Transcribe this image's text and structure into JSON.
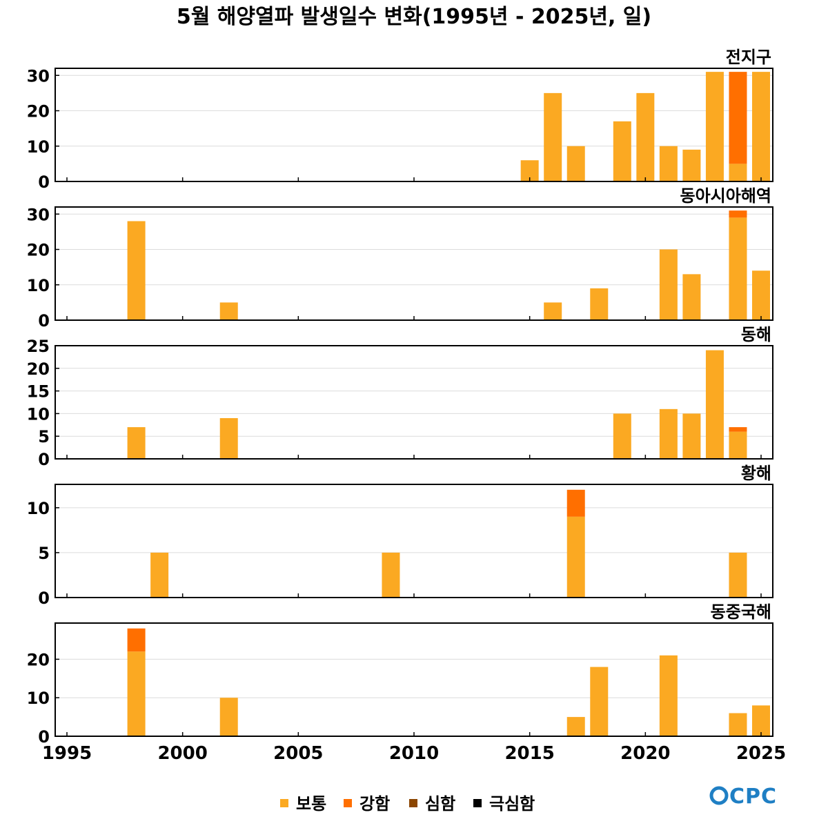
{
  "chart_data": {
    "type": "bar",
    "stacked": true,
    "title": "5월 해양열파 발생일수 변화(1995년 - 2025년, 일)",
    "xlim": [
      1995,
      2025
    ],
    "xticks": [
      1995,
      2000,
      2005,
      2010,
      2015,
      2020,
      2025
    ],
    "legend_position": "bottom-center",
    "grid": "horizontal",
    "legend": [
      {
        "name": "보통",
        "color": "#FBA922"
      },
      {
        "name": "강함",
        "color": "#FF6F00"
      },
      {
        "name": "심함",
        "color": "#8B4500"
      },
      {
        "name": "극심함",
        "color": "#000000"
      }
    ],
    "panels": [
      {
        "title": "전지구",
        "ylim": [
          0,
          32
        ],
        "yticks": [
          0,
          10,
          20,
          30
        ],
        "bars": [
          {
            "year": 2015,
            "values": [
              6,
              0,
              0,
              0
            ]
          },
          {
            "year": 2016,
            "values": [
              25,
              0,
              0,
              0
            ]
          },
          {
            "year": 2017,
            "values": [
              10,
              0,
              0,
              0
            ]
          },
          {
            "year": 2019,
            "values": [
              17,
              0,
              0,
              0
            ]
          },
          {
            "year": 2020,
            "values": [
              25,
              0,
              0,
              0
            ]
          },
          {
            "year": 2021,
            "values": [
              10,
              0,
              0,
              0
            ]
          },
          {
            "year": 2022,
            "values": [
              9,
              0,
              0,
              0
            ]
          },
          {
            "year": 2023,
            "values": [
              31,
              0,
              0,
              0
            ]
          },
          {
            "year": 2024,
            "values": [
              5,
              26,
              0,
              0
            ]
          },
          {
            "year": 2025,
            "values": [
              31,
              0,
              0,
              0
            ]
          }
        ]
      },
      {
        "title": "동아시아해역",
        "ylim": [
          0,
          32
        ],
        "yticks": [
          0,
          10,
          20,
          30
        ],
        "bars": [
          {
            "year": 1998,
            "values": [
              28,
              0,
              0,
              0
            ]
          },
          {
            "year": 2002,
            "values": [
              5,
              0,
              0,
              0
            ]
          },
          {
            "year": 2016,
            "values": [
              5,
              0,
              0,
              0
            ]
          },
          {
            "year": 2018,
            "values": [
              9,
              0,
              0,
              0
            ]
          },
          {
            "year": 2021,
            "values": [
              20,
              0,
              0,
              0
            ]
          },
          {
            "year": 2022,
            "values": [
              13,
              0,
              0,
              0
            ]
          },
          {
            "year": 2024,
            "values": [
              29,
              2,
              0,
              0
            ]
          },
          {
            "year": 2025,
            "values": [
              14,
              0,
              0,
              0
            ]
          }
        ]
      },
      {
        "title": "동해",
        "ylim": [
          0,
          25
        ],
        "yticks": [
          0,
          5,
          10,
          15,
          20,
          25
        ],
        "bars": [
          {
            "year": 1998,
            "values": [
              7,
              0,
              0,
              0
            ]
          },
          {
            "year": 2002,
            "values": [
              9,
              0,
              0,
              0
            ]
          },
          {
            "year": 2019,
            "values": [
              10,
              0,
              0,
              0
            ]
          },
          {
            "year": 2021,
            "values": [
              11,
              0,
              0,
              0
            ]
          },
          {
            "year": 2022,
            "values": [
              10,
              0,
              0,
              0
            ]
          },
          {
            "year": 2023,
            "values": [
              24,
              0,
              0,
              0
            ]
          },
          {
            "year": 2024,
            "values": [
              6,
              1,
              0,
              0
            ]
          }
        ]
      },
      {
        "title": "황해",
        "ylim": [
          0,
          12.6
        ],
        "yticks": [
          0,
          5,
          10
        ],
        "bars": [
          {
            "year": 1999,
            "values": [
              5,
              0,
              0,
              0
            ]
          },
          {
            "year": 2009,
            "values": [
              5,
              0,
              0,
              0
            ]
          },
          {
            "year": 2017,
            "values": [
              9,
              3,
              0,
              0
            ]
          },
          {
            "year": 2024,
            "values": [
              5,
              0,
              0,
              0
            ]
          }
        ]
      },
      {
        "title": "동중국해",
        "ylim": [
          0,
          29.4
        ],
        "yticks": [
          0,
          10,
          20
        ],
        "bars": [
          {
            "year": 1998,
            "values": [
              22,
              6,
              0,
              0
            ]
          },
          {
            "year": 2002,
            "values": [
              10,
              0,
              0,
              0
            ]
          },
          {
            "year": 2017,
            "values": [
              5,
              0,
              0,
              0
            ]
          },
          {
            "year": 2018,
            "values": [
              18,
              0,
              0,
              0
            ]
          },
          {
            "year": 2021,
            "values": [
              21,
              0,
              0,
              0
            ]
          },
          {
            "year": 2024,
            "values": [
              6,
              0,
              0,
              0
            ]
          },
          {
            "year": 2025,
            "values": [
              8,
              0,
              0,
              0
            ]
          }
        ]
      }
    ]
  },
  "logo": {
    "text": "OCPC"
  }
}
